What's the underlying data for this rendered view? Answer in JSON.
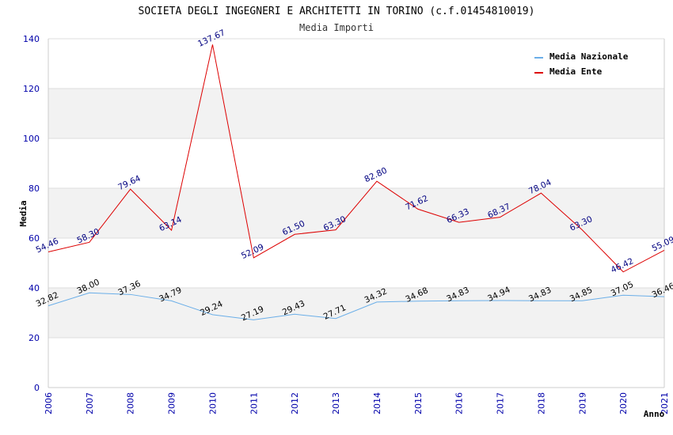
{
  "chart_data": {
    "type": "line",
    "title": "SOCIETA DEGLI INGEGNERI E ARCHITETTI IN TORINO (c.f.01454810019)",
    "subtitle": "Media Importi",
    "xlabel": "Anno",
    "ylabel": "Media",
    "ylim": [
      0,
      140
    ],
    "yticks": [
      0,
      20,
      40,
      60,
      80,
      100,
      120,
      140
    ],
    "grid": "horizontal bands",
    "legend_position": "top-right",
    "categories": [
      "2006",
      "2007",
      "2008",
      "2009",
      "2010",
      "2011",
      "2012",
      "2013",
      "2014",
      "2015",
      "2016",
      "2017",
      "2018",
      "2019",
      "2020",
      "2021"
    ],
    "series": [
      {
        "name": "Media Nazionale",
        "color": "#6aaee8",
        "label_color": "#000000",
        "values": [
          32.82,
          38.0,
          37.36,
          34.79,
          29.24,
          27.19,
          29.43,
          27.71,
          34.32,
          34.68,
          34.83,
          34.94,
          34.83,
          34.85,
          37.05,
          36.46
        ],
        "labels": [
          "32.82",
          "38.00",
          "37.36",
          "34.79",
          "29.24",
          "27.19",
          "29.43",
          "27.71",
          "34.32",
          "34.68",
          "34.83",
          "34.94",
          "34.83",
          "34.85",
          "37.05",
          "36.46"
        ]
      },
      {
        "name": "Media Ente",
        "color": "#dd0000",
        "label_color": "#000080",
        "values": [
          54.46,
          58.3,
          79.64,
          63.14,
          137.67,
          52.09,
          61.5,
          63.3,
          82.8,
          71.62,
          66.33,
          68.37,
          78.04,
          63.3,
          46.42,
          55.09
        ],
        "labels": [
          "54.46",
          "58.30",
          "79.64",
          "63.14",
          "137.67",
          "52.09",
          "61.50",
          "63.30",
          "82.80",
          "71.62",
          "66.33",
          "68.37",
          "78.04",
          "63.30",
          "46.42",
          "55.09"
        ]
      }
    ],
    "colors": {
      "axis_text": "#0000aa",
      "band": "#f2f2f2",
      "grid": "#dddddd"
    }
  }
}
